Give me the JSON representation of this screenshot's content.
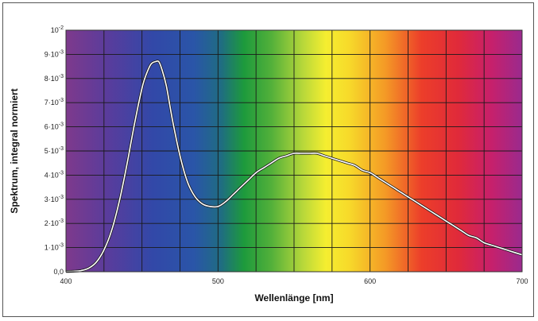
{
  "chart_data": {
    "type": "line",
    "title": "",
    "xlabel": "Wellenlänge [nm]",
    "ylabel": "Spektrum, integral normiert",
    "xlim": [
      400,
      700
    ],
    "ylim": [
      0,
      0.01
    ],
    "x_ticks": [
      400,
      500,
      600,
      700
    ],
    "x_tick_labels": [
      "400",
      "500",
      "600",
      "700"
    ],
    "y_ticks": [
      0,
      0.001,
      0.002,
      0.003,
      0.004,
      0.005,
      0.006,
      0.007,
      0.008,
      0.009,
      0.01
    ],
    "y_tick_labels": [
      {
        "mant": "0,0",
        "exp": ""
      },
      {
        "mant": "1·10",
        "exp": "-3"
      },
      {
        "mant": "2·10",
        "exp": "-3"
      },
      {
        "mant": "3·10",
        "exp": "-3"
      },
      {
        "mant": "4·10",
        "exp": "-3"
      },
      {
        "mant": "5·10",
        "exp": "-3"
      },
      {
        "mant": "6·10",
        "exp": "-3"
      },
      {
        "mant": "7·10",
        "exp": "-3"
      },
      {
        "mant": "8·10",
        "exp": "-3"
      },
      {
        "mant": "9·10",
        "exp": "-3"
      },
      {
        "mant": "10",
        "exp": "-2"
      }
    ],
    "vertical_gridlines_x": [
      425,
      450,
      475,
      500,
      525,
      550,
      575,
      600,
      625,
      650,
      675
    ],
    "grid": true,
    "legend": "none",
    "background": "visible spectrum color gradient",
    "series": [
      {
        "color": "#ffffff",
        "x": [
          400,
          405,
          410,
          415,
          420,
          425,
          430,
          435,
          440,
          445,
          450,
          453,
          456,
          459,
          461,
          463,
          466,
          470,
          475,
          480,
          485,
          490,
          495,
          500,
          505,
          510,
          515,
          520,
          525,
          530,
          535,
          540,
          545,
          550,
          555,
          560,
          565,
          570,
          575,
          580,
          585,
          590,
          595,
          600,
          605,
          610,
          615,
          620,
          625,
          630,
          635,
          640,
          645,
          650,
          655,
          660,
          665,
          670,
          675,
          680,
          685,
          690,
          695,
          700
        ],
        "y": [
          1e-05,
          2e-05,
          5e-05,
          0.00015,
          0.0004,
          0.0009,
          0.0017,
          0.0029,
          0.0044,
          0.0061,
          0.0076,
          0.0082,
          0.0086,
          0.0087,
          0.0087,
          0.0084,
          0.0077,
          0.0063,
          0.0048,
          0.0037,
          0.0031,
          0.0028,
          0.0027,
          0.0027,
          0.0029,
          0.0032,
          0.0035,
          0.0038,
          0.0041,
          0.0043,
          0.0045,
          0.0047,
          0.0048,
          0.0049,
          0.0049,
          0.0049,
          0.0049,
          0.0048,
          0.0047,
          0.0046,
          0.0045,
          0.0044,
          0.0042,
          0.0041,
          0.0039,
          0.0037,
          0.0035,
          0.0033,
          0.0031,
          0.0029,
          0.0027,
          0.0025,
          0.0023,
          0.0021,
          0.0019,
          0.0017,
          0.0015,
          0.0014,
          0.0012,
          0.0011,
          0.001,
          0.0009,
          0.0008,
          0.0007
        ]
      }
    ]
  }
}
